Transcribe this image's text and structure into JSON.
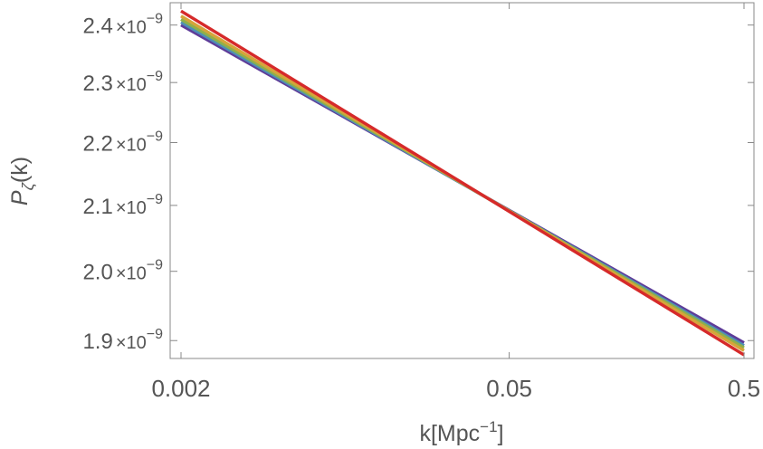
{
  "chart_data": {
    "type": "line",
    "x_scale": "log",
    "y_scale": "log",
    "xlabel": {
      "base": "k[Mpc",
      "sup": "−1",
      "tail": "]"
    },
    "ylabel": {
      "base": "P",
      "sub": "ζ",
      "tail": "(k)"
    },
    "xlim": [
      0.002,
      0.5
    ],
    "ylim": [
      1.875e-09,
      2.44e-09
    ],
    "x_ticks": [
      {
        "value": 0.002,
        "label": "0.002"
      },
      {
        "value": 0.05,
        "label": "0.05"
      },
      {
        "value": 0.5,
        "label": "0.5"
      }
    ],
    "y_ticks": [
      {
        "value": 1.9e-09,
        "mantissa": "1.9",
        "times": "×10",
        "exp": "−9"
      },
      {
        "value": 2e-09,
        "mantissa": "2.0",
        "times": "×10",
        "exp": "−9"
      },
      {
        "value": 2.1e-09,
        "mantissa": "2.1",
        "times": "×10",
        "exp": "−9"
      },
      {
        "value": 2.2e-09,
        "mantissa": "2.2",
        "times": "×10",
        "exp": "−9"
      },
      {
        "value": 2.3e-09,
        "mantissa": "2.3",
        "times": "×10",
        "exp": "−9"
      },
      {
        "value": 2.4e-09,
        "mantissa": "2.4",
        "times": "×10",
        "exp": "−9"
      }
    ],
    "grid": false,
    "legend": "none",
    "series": [
      {
        "color": "#5e3c99",
        "x": [
          0.002,
          0.5
        ],
        "y": [
          2.4e-09,
          1.897e-09
        ]
      },
      {
        "color": "#4e8fb5",
        "x": [
          0.002,
          0.5
        ],
        "y": [
          2.405e-09,
          1.893e-09
        ]
      },
      {
        "color": "#8fb04a",
        "x": [
          0.002,
          0.5
        ],
        "y": [
          2.41e-09,
          1.89e-09
        ]
      },
      {
        "color": "#d6a43a",
        "x": [
          0.002,
          0.5
        ],
        "y": [
          2.416e-09,
          1.886e-09
        ]
      },
      {
        "color": "#d62a2a",
        "x": [
          0.002,
          0.5
        ],
        "y": [
          2.425e-09,
          1.88e-09
        ]
      }
    ]
  }
}
